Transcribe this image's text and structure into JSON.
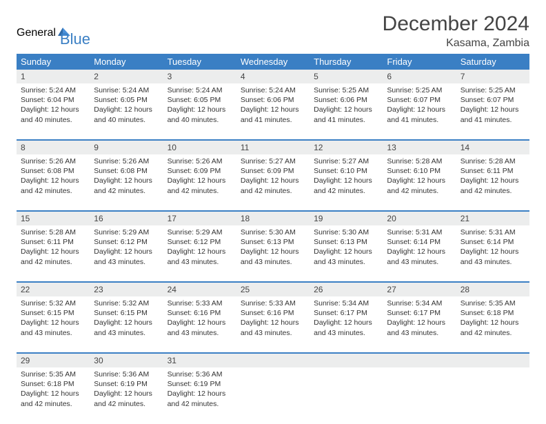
{
  "logo": {
    "textGray": "General",
    "textBlue": "Blue"
  },
  "title": {
    "month": "December 2024",
    "location": "Kasama, Zambia"
  },
  "colors": {
    "headerBg": "#3a7fc4",
    "headerText": "#ffffff",
    "dayNumBg": "#eceded",
    "rowBorder": "#3a7fc4",
    "bodyText": "#333333",
    "titleText": "#444444",
    "logoGray": "#6b6b6b",
    "logoBlue": "#3a7fc4"
  },
  "weekdays": [
    "Sunday",
    "Monday",
    "Tuesday",
    "Wednesday",
    "Thursday",
    "Friday",
    "Saturday"
  ],
  "days": [
    {
      "n": "1",
      "sr": "5:24 AM",
      "ss": "6:04 PM",
      "dl": "12 hours and 40 minutes."
    },
    {
      "n": "2",
      "sr": "5:24 AM",
      "ss": "6:05 PM",
      "dl": "12 hours and 40 minutes."
    },
    {
      "n": "3",
      "sr": "5:24 AM",
      "ss": "6:05 PM",
      "dl": "12 hours and 40 minutes."
    },
    {
      "n": "4",
      "sr": "5:24 AM",
      "ss": "6:06 PM",
      "dl": "12 hours and 41 minutes."
    },
    {
      "n": "5",
      "sr": "5:25 AM",
      "ss": "6:06 PM",
      "dl": "12 hours and 41 minutes."
    },
    {
      "n": "6",
      "sr": "5:25 AM",
      "ss": "6:07 PM",
      "dl": "12 hours and 41 minutes."
    },
    {
      "n": "7",
      "sr": "5:25 AM",
      "ss": "6:07 PM",
      "dl": "12 hours and 41 minutes."
    },
    {
      "n": "8",
      "sr": "5:26 AM",
      "ss": "6:08 PM",
      "dl": "12 hours and 42 minutes."
    },
    {
      "n": "9",
      "sr": "5:26 AM",
      "ss": "6:08 PM",
      "dl": "12 hours and 42 minutes."
    },
    {
      "n": "10",
      "sr": "5:26 AM",
      "ss": "6:09 PM",
      "dl": "12 hours and 42 minutes."
    },
    {
      "n": "11",
      "sr": "5:27 AM",
      "ss": "6:09 PM",
      "dl": "12 hours and 42 minutes."
    },
    {
      "n": "12",
      "sr": "5:27 AM",
      "ss": "6:10 PM",
      "dl": "12 hours and 42 minutes."
    },
    {
      "n": "13",
      "sr": "5:28 AM",
      "ss": "6:10 PM",
      "dl": "12 hours and 42 minutes."
    },
    {
      "n": "14",
      "sr": "5:28 AM",
      "ss": "6:11 PM",
      "dl": "12 hours and 42 minutes."
    },
    {
      "n": "15",
      "sr": "5:28 AM",
      "ss": "6:11 PM",
      "dl": "12 hours and 42 minutes."
    },
    {
      "n": "16",
      "sr": "5:29 AM",
      "ss": "6:12 PM",
      "dl": "12 hours and 43 minutes."
    },
    {
      "n": "17",
      "sr": "5:29 AM",
      "ss": "6:12 PM",
      "dl": "12 hours and 43 minutes."
    },
    {
      "n": "18",
      "sr": "5:30 AM",
      "ss": "6:13 PM",
      "dl": "12 hours and 43 minutes."
    },
    {
      "n": "19",
      "sr": "5:30 AM",
      "ss": "6:13 PM",
      "dl": "12 hours and 43 minutes."
    },
    {
      "n": "20",
      "sr": "5:31 AM",
      "ss": "6:14 PM",
      "dl": "12 hours and 43 minutes."
    },
    {
      "n": "21",
      "sr": "5:31 AM",
      "ss": "6:14 PM",
      "dl": "12 hours and 43 minutes."
    },
    {
      "n": "22",
      "sr": "5:32 AM",
      "ss": "6:15 PM",
      "dl": "12 hours and 43 minutes."
    },
    {
      "n": "23",
      "sr": "5:32 AM",
      "ss": "6:15 PM",
      "dl": "12 hours and 43 minutes."
    },
    {
      "n": "24",
      "sr": "5:33 AM",
      "ss": "6:16 PM",
      "dl": "12 hours and 43 minutes."
    },
    {
      "n": "25",
      "sr": "5:33 AM",
      "ss": "6:16 PM",
      "dl": "12 hours and 43 minutes."
    },
    {
      "n": "26",
      "sr": "5:34 AM",
      "ss": "6:17 PM",
      "dl": "12 hours and 43 minutes."
    },
    {
      "n": "27",
      "sr": "5:34 AM",
      "ss": "6:17 PM",
      "dl": "12 hours and 43 minutes."
    },
    {
      "n": "28",
      "sr": "5:35 AM",
      "ss": "6:18 PM",
      "dl": "12 hours and 42 minutes."
    },
    {
      "n": "29",
      "sr": "5:35 AM",
      "ss": "6:18 PM",
      "dl": "12 hours and 42 minutes."
    },
    {
      "n": "30",
      "sr": "5:36 AM",
      "ss": "6:19 PM",
      "dl": "12 hours and 42 minutes."
    },
    {
      "n": "31",
      "sr": "5:36 AM",
      "ss": "6:19 PM",
      "dl": "12 hours and 42 minutes."
    }
  ],
  "labels": {
    "sunrise": "Sunrise:",
    "sunset": "Sunset:",
    "daylight": "Daylight:"
  },
  "layout": {
    "cols": 7,
    "rows": 5,
    "startCol": 0,
    "cellHeight": 82
  }
}
